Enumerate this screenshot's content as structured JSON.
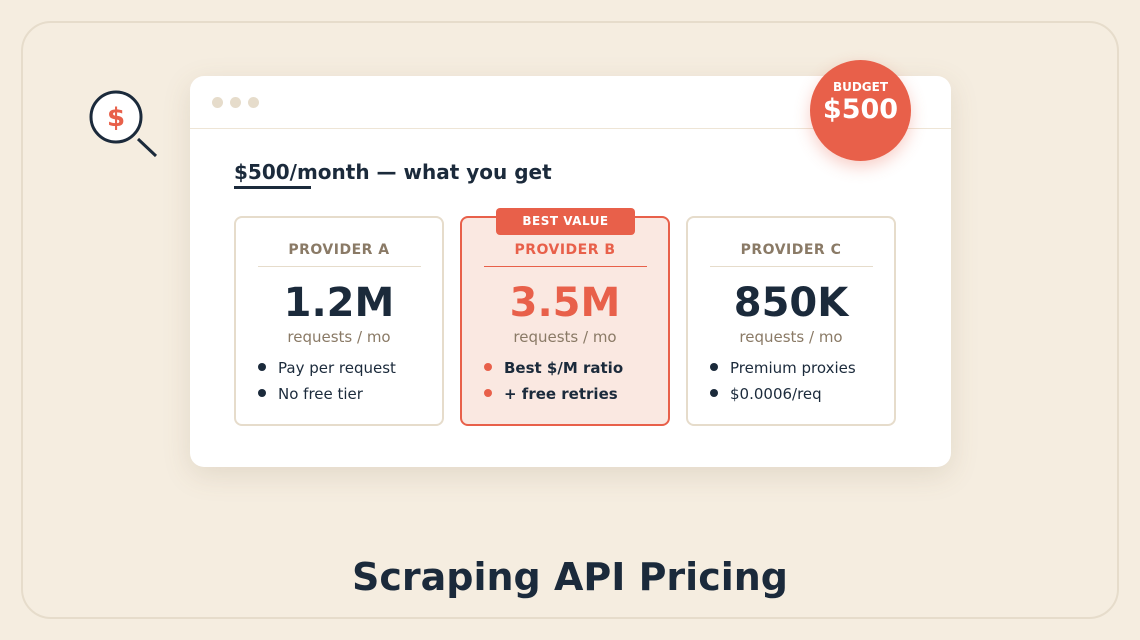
{
  "icon": {
    "symbol": "$"
  },
  "badge": {
    "label": "BUDGET",
    "amount": "$500"
  },
  "card": {
    "heading_highlight": "$500/",
    "heading_rest": "month — what you get"
  },
  "providers": [
    {
      "name": "PROVIDER A",
      "amount": "1.2M",
      "unit": "requests / mo",
      "features": [
        "Pay per request",
        "No free tier"
      ]
    },
    {
      "name": "PROVIDER B",
      "tag": "BEST VALUE",
      "amount": "3.5M",
      "unit": "requests / mo",
      "features": [
        "Best $/M ratio",
        "+ free retries"
      ]
    },
    {
      "name": "PROVIDER C",
      "amount": "850K",
      "unit": "requests / mo",
      "features": [
        "Premium proxies",
        "$0.0006/req"
      ]
    }
  ],
  "footer": {
    "title": "Scraping API Pricing"
  }
}
